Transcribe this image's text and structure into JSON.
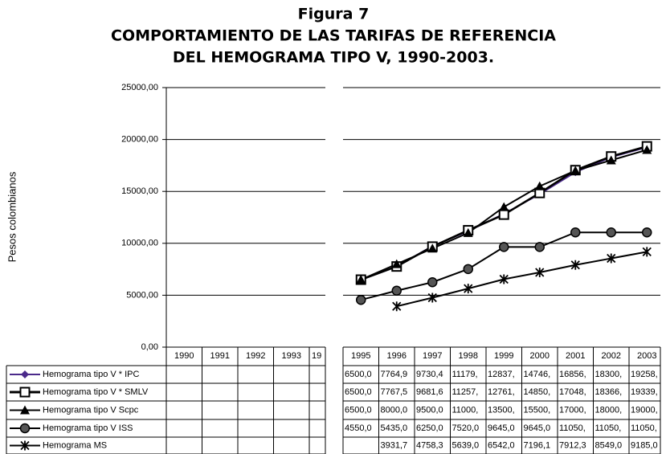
{
  "chart_data": {
    "type": "line",
    "title": [
      "Figura 7",
      "COMPORTAMIENTO DE LAS TARIFAS DE REFERENCIA",
      "DEL HEMOGRAMA TIPO V, 1990-2003."
    ],
    "y_label": "Pesos colombianos",
    "categories": [
      "1990",
      "1991",
      "1992",
      "1993",
      "19",
      "1995",
      "1996",
      "1997",
      "1998",
      "1999",
      "2000",
      "2001",
      "2002",
      "2003"
    ],
    "ylim": [
      0,
      25000
    ],
    "yticks": [
      {
        "value": 0,
        "label": "0,00"
      },
      {
        "value": 5000,
        "label": "5000,00"
      },
      {
        "value": 10000,
        "label": "10000,00"
      },
      {
        "value": 15000,
        "label": "15000,00"
      },
      {
        "value": 20000,
        "label": "20000,00"
      },
      {
        "value": 25000,
        "label": "25000,00"
      }
    ],
    "grid": true,
    "series": [
      {
        "name": "Hemograma tipo V * IPC",
        "color": "#4b2a8a",
        "marker": "diamond",
        "values": [
          null,
          null,
          null,
          null,
          null,
          6500,
          7764.9,
          9730.4,
          11179,
          12837,
          14746,
          16856,
          18300,
          19258
        ],
        "value_labels": [
          null,
          null,
          null,
          null,
          null,
          "6500,0",
          "7764,9",
          "9730,4",
          "11179,",
          "12837,",
          "14746,",
          "16856,",
          "18300,",
          "19258,"
        ]
      },
      {
        "name": "Hemograma tipo V * SMLV",
        "color": "#000000",
        "marker": "square",
        "values": [
          null,
          null,
          null,
          null,
          null,
          6500,
          7767.5,
          9681.6,
          11257,
          12761,
          14850,
          17048,
          18366,
          19339
        ],
        "value_labels": [
          null,
          null,
          null,
          null,
          null,
          "6500,0",
          "7767,5",
          "9681,6",
          "11257,",
          "12761,",
          "14850,",
          "17048,",
          "18366,",
          "19339,"
        ]
      },
      {
        "name": "Hemograma tipo V Scpc",
        "color": "#000000",
        "marker": "triangle",
        "values": [
          null,
          null,
          null,
          null,
          null,
          6500,
          8000,
          9500,
          11000,
          13500,
          15500,
          17000,
          18000,
          19000
        ],
        "value_labels": [
          null,
          null,
          null,
          null,
          null,
          "6500,0",
          "8000,0",
          "9500,0",
          "11000,",
          "13500,",
          "15500,",
          "17000,",
          "18000,",
          "19000,"
        ]
      },
      {
        "name": "Hemograma tipo V ISS",
        "color": "#000000",
        "marker": "circle",
        "values": [
          null,
          null,
          null,
          null,
          null,
          4550,
          5435,
          6250,
          7520,
          9645,
          9645,
          11050,
          11050,
          11050
        ],
        "value_labels": [
          null,
          null,
          null,
          null,
          null,
          "4550,0",
          "5435,0",
          "6250,0",
          "7520,0",
          "9645,0",
          "9645,0",
          "11050,",
          "11050,",
          "11050,"
        ]
      },
      {
        "name": "Hemograma MS",
        "color": "#000000",
        "marker": "star",
        "values": [
          null,
          null,
          null,
          null,
          null,
          null,
          3931.7,
          4758.3,
          5639.0,
          6542.0,
          7196.1,
          7912.3,
          8549.0,
          9185.0
        ],
        "value_labels": [
          null,
          null,
          null,
          null,
          null,
          null,
          "3931,7",
          "4758,3",
          "5639,0",
          "6542,0",
          "7196,1",
          "7912,3",
          "8549,0",
          "9185,0"
        ]
      }
    ]
  }
}
